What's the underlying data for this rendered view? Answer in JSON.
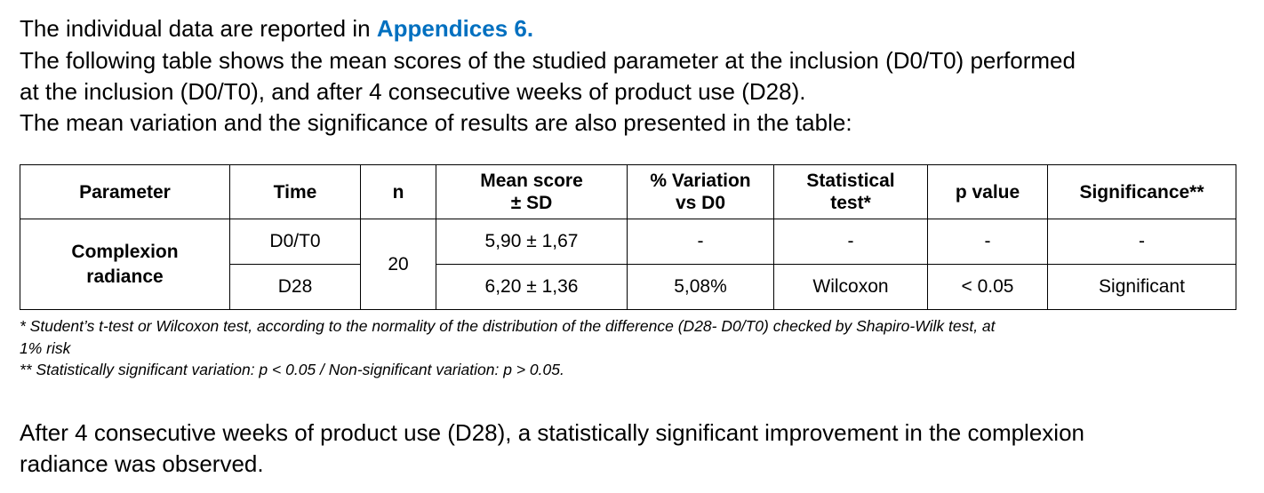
{
  "intro": {
    "text": "The individual data are reported in ",
    "link": "Appendices 6",
    "end": "."
  },
  "paragraph": {
    "lines": [
      "The following table shows the mean scores of the studied parameter at the inclusion (D0/T0) performed",
      "at the inclusion (D0/T0), and after 4 consecutive weeks of product use (D28).",
      "The mean variation and the significance of results are also presented in the table:"
    ]
  },
  "table": {
    "header": [
      [
        "Parameter"
      ],
      [
        "Time"
      ],
      [
        "n"
      ],
      [
        "Mean score",
        "± SD"
      ],
      [
        "% Variation",
        "vs D0"
      ],
      [
        "Statistical",
        "test*"
      ],
      [
        "p value"
      ],
      [
        "Significance**"
      ]
    ],
    "rows": [
      [
        [
          "Complexion",
          "radiance"
        ],
        "D0/T0",
        20,
        "5,90 ± 1,67",
        "-",
        "-",
        "-",
        "-"
      ],
      [
        "D28",
        "6,20 ± 1,36",
        "5,08%",
        "Wilcoxon",
        "< 0.05",
        "Significant"
      ]
    ]
  },
  "footnotes": [
    [
      "* Student’s t-test or Wilcoxon test, according to the normality of the distribution of the difference (D28- D0/T0) checked by Shapiro-Wilk test, at",
      "1% risk"
    ],
    "** Statistically significant variation: p < 0.05 / Non-significant variation: p > 0.05."
  ],
  "conclusion": {
    "lines": [
      "After 4 consecutive weeks of product use (D28), a statistically significant improvement in the complexion",
      "radiance was observed."
    ]
  }
}
